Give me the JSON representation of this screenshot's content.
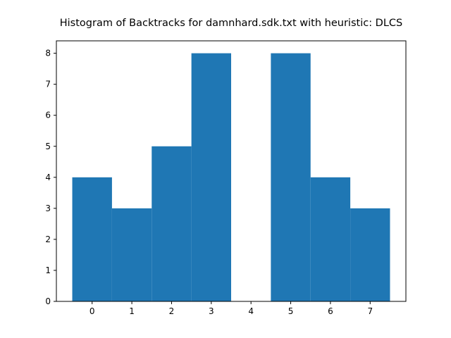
{
  "chart_data": {
    "type": "bar",
    "title": "Histogram of Backtracks for damnhard.sdk.txt with heuristic: DLCS",
    "xlabel": "",
    "ylabel": "",
    "categories": [
      "0",
      "1",
      "2",
      "3",
      "4",
      "5",
      "6",
      "7"
    ],
    "values": [
      4,
      3,
      5,
      8,
      0,
      8,
      4,
      3
    ],
    "xlim": [
      -0.9,
      7.9
    ],
    "ylim": [
      0,
      8.4
    ],
    "xticks": [
      0,
      1,
      2,
      3,
      4,
      5,
      6,
      7
    ],
    "yticks": [
      0,
      1,
      2,
      3,
      4,
      5,
      6,
      7,
      8
    ],
    "bar_color": "#1f77b4",
    "grid": false,
    "legend": "none"
  }
}
